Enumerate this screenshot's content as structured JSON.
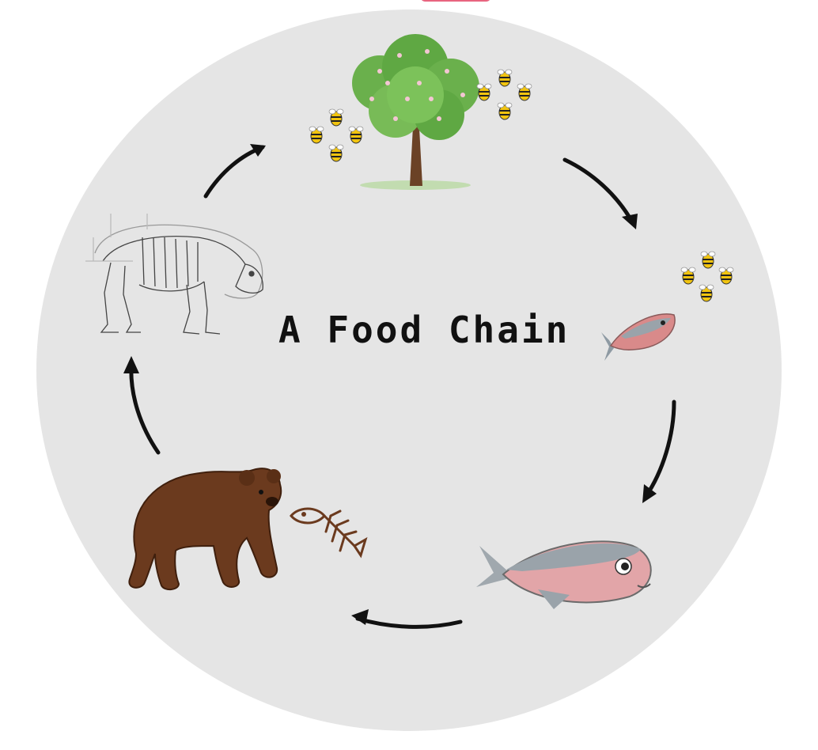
{
  "title": "A Food Chain",
  "colors": {
    "background_circle": "#e5e5e5",
    "accent_tab": "#e8647f",
    "arrow": "#111111",
    "tree_leaves": "#6ab04c",
    "tree_trunk": "#6b4226",
    "bear_fur": "#6b3a1e",
    "salmon_body": "#d98a8a",
    "bee_body": "#f1c40f"
  },
  "stages": [
    {
      "id": "tree",
      "icon": "flowering-tree-icon"
    },
    {
      "id": "small-salmon",
      "icon": "small-salmon-icon"
    },
    {
      "id": "large-salmon",
      "icon": "large-salmon-icon"
    },
    {
      "id": "bear",
      "icon": "brown-bear-icon"
    },
    {
      "id": "bear-skeleton",
      "icon": "bear-skeleton-icon"
    }
  ],
  "decorations": [
    "bee-icon",
    "fish-skeleton-icon"
  ]
}
